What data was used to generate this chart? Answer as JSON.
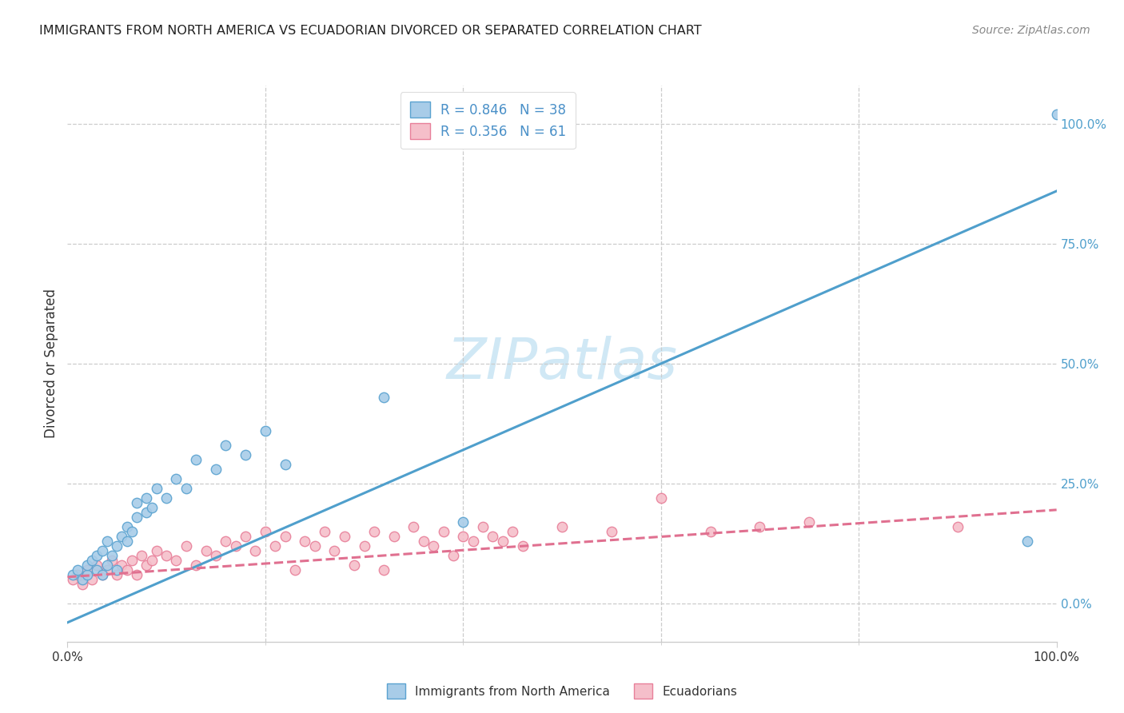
{
  "title": "IMMIGRANTS FROM NORTH AMERICA VS ECUADORIAN DIVORCED OR SEPARATED CORRELATION CHART",
  "source": "Source: ZipAtlas.com",
  "ylabel": "Divorced or Separated",
  "xlim": [
    0.0,
    1.0
  ],
  "ylim": [
    -0.08,
    1.08
  ],
  "ytick_vals": [
    0.0,
    0.25,
    0.5,
    0.75,
    1.0
  ],
  "ytick_labels": [
    "0.0%",
    "25.0%",
    "50.0%",
    "75.0%",
    "100.0%"
  ],
  "xtick_major": [
    0.0,
    1.0
  ],
  "xtick_major_labels": [
    "0.0%",
    "100.0%"
  ],
  "xtick_minor": [
    0.2,
    0.4,
    0.6,
    0.8
  ],
  "blue_fill": "#a8cce8",
  "blue_edge": "#5ba3d0",
  "pink_fill": "#f5bfca",
  "pink_edge": "#e8809a",
  "blue_line_color": "#4f9fcc",
  "pink_line_color": "#e07090",
  "grid_color": "#cccccc",
  "watermark_color": "#d0e8f5",
  "title_color": "#222222",
  "source_color": "#888888",
  "axis_text_color": "#333333",
  "legend_text_color": "#4a90c8",
  "legend_R1": "R = 0.846",
  "legend_N1": "N = 38",
  "legend_R2": "R = 0.356",
  "legend_N2": "N = 61",
  "label1": "Immigrants from North America",
  "label2": "Ecuadorians",
  "watermark": "ZIPatlas",
  "blue_line_x0": 0.0,
  "blue_line_y0": -0.04,
  "blue_line_x1": 1.0,
  "blue_line_y1": 0.86,
  "pink_line_x0": 0.0,
  "pink_line_y0": 0.055,
  "pink_line_x1": 1.0,
  "pink_line_y1": 0.195,
  "blue_scatter_x": [
    0.005,
    0.01,
    0.015,
    0.02,
    0.02,
    0.025,
    0.03,
    0.03,
    0.035,
    0.035,
    0.04,
    0.04,
    0.045,
    0.05,
    0.05,
    0.055,
    0.06,
    0.06,
    0.065,
    0.07,
    0.07,
    0.08,
    0.08,
    0.085,
    0.09,
    0.1,
    0.11,
    0.12,
    0.13,
    0.15,
    0.16,
    0.18,
    0.2,
    0.22,
    0.32,
    0.4,
    0.97,
    1.0
  ],
  "blue_scatter_y": [
    0.06,
    0.07,
    0.05,
    0.06,
    0.08,
    0.09,
    0.07,
    0.1,
    0.06,
    0.11,
    0.08,
    0.13,
    0.1,
    0.07,
    0.12,
    0.14,
    0.13,
    0.16,
    0.15,
    0.18,
    0.21,
    0.19,
    0.22,
    0.2,
    0.24,
    0.22,
    0.26,
    0.24,
    0.3,
    0.28,
    0.33,
    0.31,
    0.36,
    0.29,
    0.43,
    0.17,
    0.13,
    1.02
  ],
  "pink_scatter_x": [
    0.005,
    0.01,
    0.015,
    0.02,
    0.025,
    0.03,
    0.035,
    0.04,
    0.045,
    0.05,
    0.055,
    0.06,
    0.065,
    0.07,
    0.075,
    0.08,
    0.085,
    0.09,
    0.1,
    0.11,
    0.12,
    0.13,
    0.14,
    0.15,
    0.16,
    0.17,
    0.18,
    0.19,
    0.2,
    0.21,
    0.22,
    0.23,
    0.24,
    0.25,
    0.26,
    0.27,
    0.28,
    0.29,
    0.3,
    0.31,
    0.32,
    0.33,
    0.35,
    0.36,
    0.37,
    0.38,
    0.39,
    0.4,
    0.41,
    0.42,
    0.43,
    0.44,
    0.45,
    0.46,
    0.5,
    0.55,
    0.6,
    0.65,
    0.7,
    0.75,
    0.9
  ],
  "pink_scatter_y": [
    0.05,
    0.06,
    0.04,
    0.07,
    0.05,
    0.08,
    0.06,
    0.07,
    0.09,
    0.06,
    0.08,
    0.07,
    0.09,
    0.06,
    0.1,
    0.08,
    0.09,
    0.11,
    0.1,
    0.09,
    0.12,
    0.08,
    0.11,
    0.1,
    0.13,
    0.12,
    0.14,
    0.11,
    0.15,
    0.12,
    0.14,
    0.07,
    0.13,
    0.12,
    0.15,
    0.11,
    0.14,
    0.08,
    0.12,
    0.15,
    0.07,
    0.14,
    0.16,
    0.13,
    0.12,
    0.15,
    0.1,
    0.14,
    0.13,
    0.16,
    0.14,
    0.13,
    0.15,
    0.12,
    0.16,
    0.15,
    0.22,
    0.15,
    0.16,
    0.17,
    0.16
  ]
}
